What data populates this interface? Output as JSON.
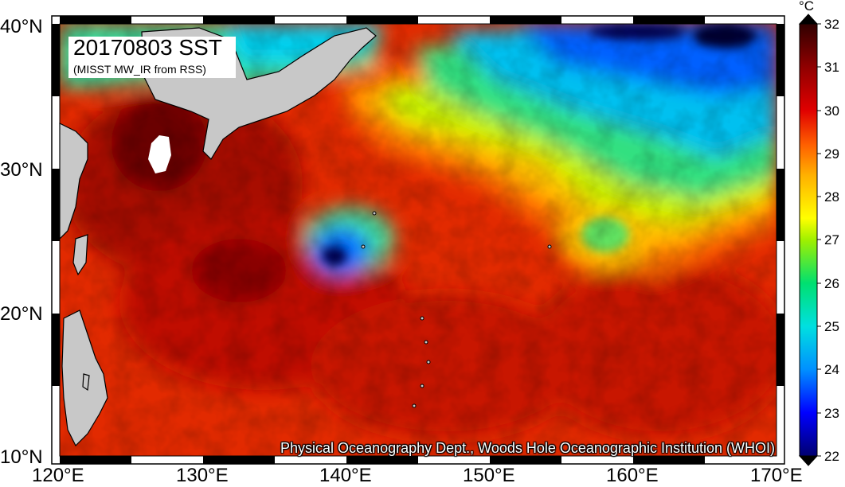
{
  "map": {
    "title": "20170803 SST",
    "subtitle": "(MISST MW_IR from RSS)",
    "credit": "Physical Oceanography Dept., Woods Hole Oceanographic Institution (WHOI)",
    "lat_labels": [
      "40°N",
      "30°N",
      "20°N",
      "10°N"
    ],
    "lon_labels": [
      "120°E",
      "130°E",
      "140°E",
      "150°E",
      "160°E",
      "170°E"
    ],
    "land_color": "#c8c8c8"
  },
  "colorbar": {
    "unit": "°C",
    "ticks": [
      "32",
      "31",
      "30",
      "29",
      "28",
      "27",
      "26",
      "25",
      "24",
      "23",
      "22"
    ],
    "min": 22,
    "max": 32,
    "colors": [
      "#000070",
      "#0000ff",
      "#0090ff",
      "#00e0e0",
      "#00e070",
      "#a0f000",
      "#ffff00",
      "#ffb000",
      "#ff6000",
      "#e00000",
      "#900000",
      "#300000"
    ]
  }
}
